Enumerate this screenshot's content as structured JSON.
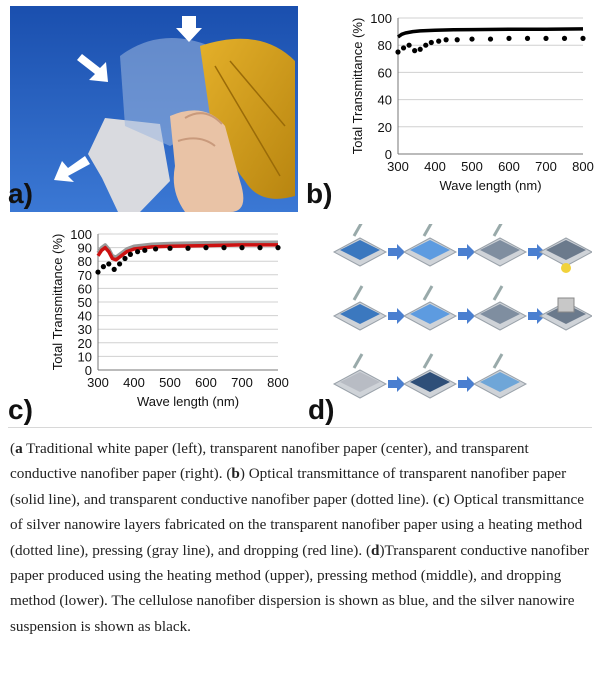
{
  "panels": {
    "a": {
      "label": "a)"
    },
    "b": {
      "label": "b)"
    },
    "c": {
      "label": "c)"
    },
    "d": {
      "label": "d)"
    }
  },
  "chart_data": [
    {
      "type": "line",
      "panel": "b",
      "xlabel": "Wave length (nm)",
      "ylabel": "Total Transmittance (%)",
      "xlim": [
        300,
        800
      ],
      "ylim": [
        0,
        100
      ],
      "xticks": [
        300,
        400,
        500,
        600,
        700,
        800
      ],
      "yticks": [
        0,
        20,
        40,
        60,
        80,
        100
      ],
      "grid": true,
      "series": [
        {
          "style": "solid",
          "color": "#000000",
          "x": [
            300,
            310,
            320,
            340,
            360,
            400,
            450,
            500,
            600,
            700,
            800
          ],
          "y": [
            86,
            88,
            89,
            90,
            90.5,
            91,
            91.3,
            91.5,
            91.7,
            91.8,
            92
          ]
        },
        {
          "style": "dotted",
          "color": "#000000",
          "x": [
            300,
            315,
            330,
            345,
            360,
            375,
            390,
            410,
            430,
            460,
            500,
            550,
            600,
            650,
            700,
            750,
            800
          ],
          "y": [
            75,
            78,
            80,
            76,
            77,
            80,
            82,
            83,
            84,
            84,
            84.5,
            84.5,
            85,
            85,
            85,
            85,
            85
          ]
        }
      ]
    },
    {
      "type": "line",
      "panel": "c",
      "xlabel": "Wave length (nm)",
      "ylabel": "Total Transmittance (%)",
      "xlim": [
        300,
        800
      ],
      "ylim": [
        0,
        100
      ],
      "xticks": [
        300,
        400,
        500,
        600,
        700,
        800
      ],
      "yticks": [
        0,
        10,
        20,
        30,
        40,
        50,
        60,
        70,
        80,
        90,
        100
      ],
      "grid": true,
      "series": [
        {
          "style": "solid",
          "color": "#999999",
          "x": [
            300,
            310,
            320,
            330,
            340,
            350,
            360,
            380,
            400,
            450,
            500,
            600,
            700,
            800
          ],
          "y": [
            86,
            90,
            92,
            89,
            84,
            83,
            85,
            89,
            91,
            92.5,
            93,
            93.5,
            93.8,
            94
          ]
        },
        {
          "style": "solid",
          "color": "#cc1111",
          "x": [
            300,
            310,
            320,
            330,
            340,
            350,
            360,
            380,
            400,
            450,
            500,
            600,
            700,
            800
          ],
          "y": [
            84,
            88,
            90,
            87,
            82,
            81,
            83,
            87,
            89,
            90.5,
            91,
            91.5,
            92,
            92
          ]
        },
        {
          "style": "dotted",
          "color": "#000000",
          "x": [
            300,
            315,
            330,
            345,
            360,
            375,
            390,
            410,
            430,
            460,
            500,
            550,
            600,
            650,
            700,
            750,
            800
          ],
          "y": [
            72,
            76,
            78,
            74,
            78,
            82,
            85,
            87,
            88,
            89,
            89.5,
            89.5,
            90,
            90,
            90,
            90,
            90
          ]
        }
      ]
    }
  ],
  "caption": {
    "a_tag": "a",
    "a_text": " Traditional white paper (left), transparent nanofiber paper (center), and transparent conductive nanofiber paper (right). (",
    "b_tag": "b",
    "b_text": ") Optical transmittance of transparent nanofiber paper (solid line), and transparent conductive nanofiber paper (dotted line). (",
    "c_tag": "c",
    "c_text": ") Optical transmittance of silver nanowire layers fabricated on the transparent nanofiber paper using a heating method (dotted line), pressing (gray line), and dropping (red line). (",
    "d_tag": "d",
    "d_text": ")Transparent conductive nanofiber paper produced using the heating method (upper), pressing method (middle), and dropping method (lower). The cellulose nanofiber dispersion is shown as blue, and the silver nanowire suspension is shown as black."
  },
  "colors": {
    "sky": "#1f57b8",
    "leaf": "#d8a219",
    "film_blue": "#3b78bf",
    "arrow_blue": "#4a7fd0"
  }
}
